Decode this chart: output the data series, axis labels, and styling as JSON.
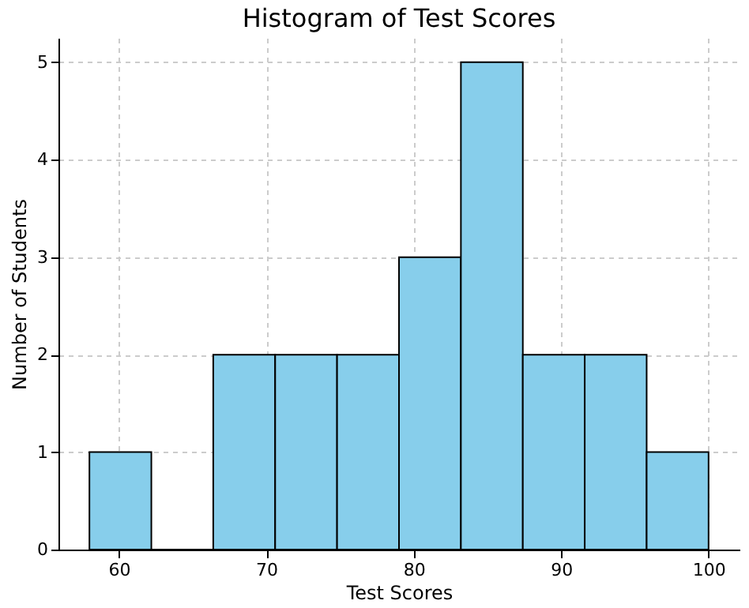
{
  "chart_data": {
    "type": "histogram",
    "title": "Histogram of Test Scores",
    "xlabel": "Test Scores",
    "ylabel": "Number of Students",
    "bins": [
      58,
      62.2,
      66.4,
      70.6,
      74.8,
      79,
      83.2,
      87.4,
      91.6,
      95.8,
      100
    ],
    "values": [
      1,
      0,
      2,
      2,
      2,
      3,
      5,
      2,
      2,
      1
    ],
    "color": "#87ceeb",
    "xlim": [
      55.9,
      102.1
    ],
    "xticks": [
      60,
      70,
      80,
      90,
      100
    ],
    "ylim": [
      0,
      5.25
    ],
    "yticks": [
      0,
      1,
      2,
      3,
      4,
      5
    ],
    "grid": true
  }
}
